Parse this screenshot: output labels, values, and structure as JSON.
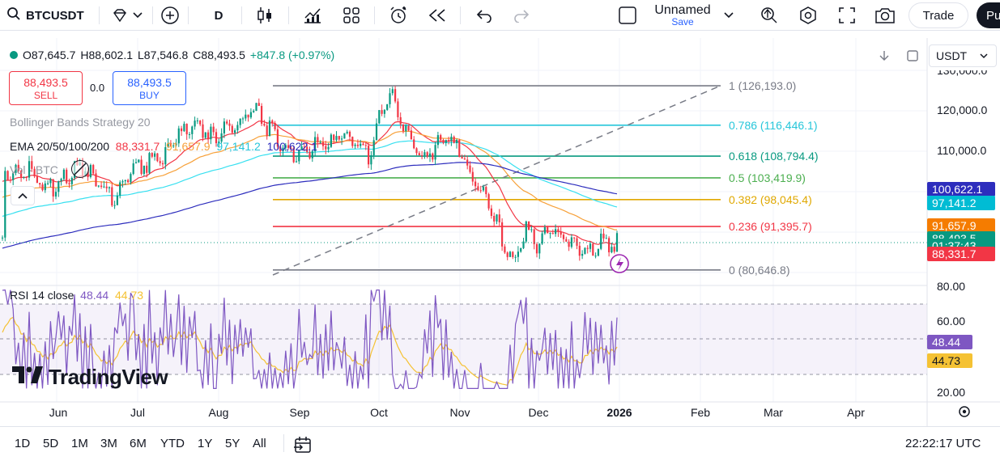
{
  "toolbar": {
    "symbol": "BTCUSDT",
    "interval": "D",
    "layout_name": "Unnamed",
    "layout_save": "Save",
    "trade_label": "Trade",
    "publish_label": "Pu"
  },
  "legend": {
    "open": "O87,645.7",
    "high": "H88,602.1",
    "low": "L87,546.8",
    "close": "C88,493.5",
    "change": "+847.8 (+0.97%)",
    "sell_price": "88,493.5",
    "sell_label": "SELL",
    "spread": "0.0",
    "buy_price": "88,493.5",
    "buy_label": "BUY",
    "bb_label": "Bollinger Bands Strategy 20",
    "ema_label": "EMA 20/50/100/200",
    "ema20": "88,331.7",
    "ema50": "91,657.9",
    "ema100": "97,141.2",
    "ema200": "100,622.1",
    "vol_label": "Vol · BTC",
    "currency": "USDT"
  },
  "colors": {
    "up": "#089981",
    "down": "#f23645",
    "ema20": "#f23645",
    "ema50": "#f7a13a",
    "ema100": "#38e0f0",
    "ema200": "#2d2dbd",
    "rsi": "#7e57c2",
    "rsi_ma": "#f5c233"
  },
  "fib_levels": [
    {
      "ratio": "1",
      "label": "1 (126,193.0)",
      "price": 126193.0,
      "color": "#787b86"
    },
    {
      "ratio": "0.786",
      "label": "0.786 (116,446.1)",
      "price": 116446.1,
      "color": "#26c6da"
    },
    {
      "ratio": "0.618",
      "label": "0.618 (108,794.4)",
      "price": 108794.4,
      "color": "#089981"
    },
    {
      "ratio": "0.5",
      "label": "0.5 (103,419.9)",
      "price": 103419.9,
      "color": "#4caf50"
    },
    {
      "ratio": "0.382",
      "label": "0.382 (98,045.4)",
      "price": 98045.4,
      "color": "#e0a800"
    },
    {
      "ratio": "0.236",
      "label": "0.236 (91,395.7)",
      "price": 91395.7,
      "color": "#f23645"
    },
    {
      "ratio": "0",
      "label": "0 (80,646.8)",
      "price": 80646.8,
      "color": "#787b86"
    }
  ],
  "price_axis": {
    "ticks": [
      "130,000.0",
      "120,000.0",
      "110,000.0"
    ],
    "tick_values": [
      130000,
      120000,
      110000
    ],
    "tags": [
      {
        "label": "100,622.1",
        "value": 100622.1,
        "color": "#2d2dbd"
      },
      {
        "label": "97,141.2",
        "value": 97141.2,
        "color": "#00bcd4"
      },
      {
        "label": "91,657.9",
        "value": 91657.9,
        "color": "#f57c00"
      },
      {
        "label": "88,493.5",
        "value": 88493.5,
        "color": "#089981"
      },
      {
        "label": "01:37:43",
        "value": 86700,
        "color": "#089981"
      },
      {
        "label": "88,331.7",
        "value": 84600,
        "color": "#f23645"
      }
    ]
  },
  "rsi": {
    "label": "RSI 14 close",
    "value": "48.44",
    "ma_value": "44.73",
    "ticks": [
      "80.00",
      "60.00",
      "20.00"
    ],
    "tick_values": [
      80,
      60,
      20
    ]
  },
  "time_axis": [
    "Jun",
    "Jul",
    "Aug",
    "Sep",
    "Oct",
    "Nov",
    "Dec",
    "2026",
    "Feb",
    "Mar",
    "Apr"
  ],
  "timeframes": [
    "1D",
    "5D",
    "1M",
    "3M",
    "6M",
    "YTD",
    "1Y",
    "5Y",
    "All"
  ],
  "clock": "22:22:17 UTC",
  "watermark": "TradingView"
}
